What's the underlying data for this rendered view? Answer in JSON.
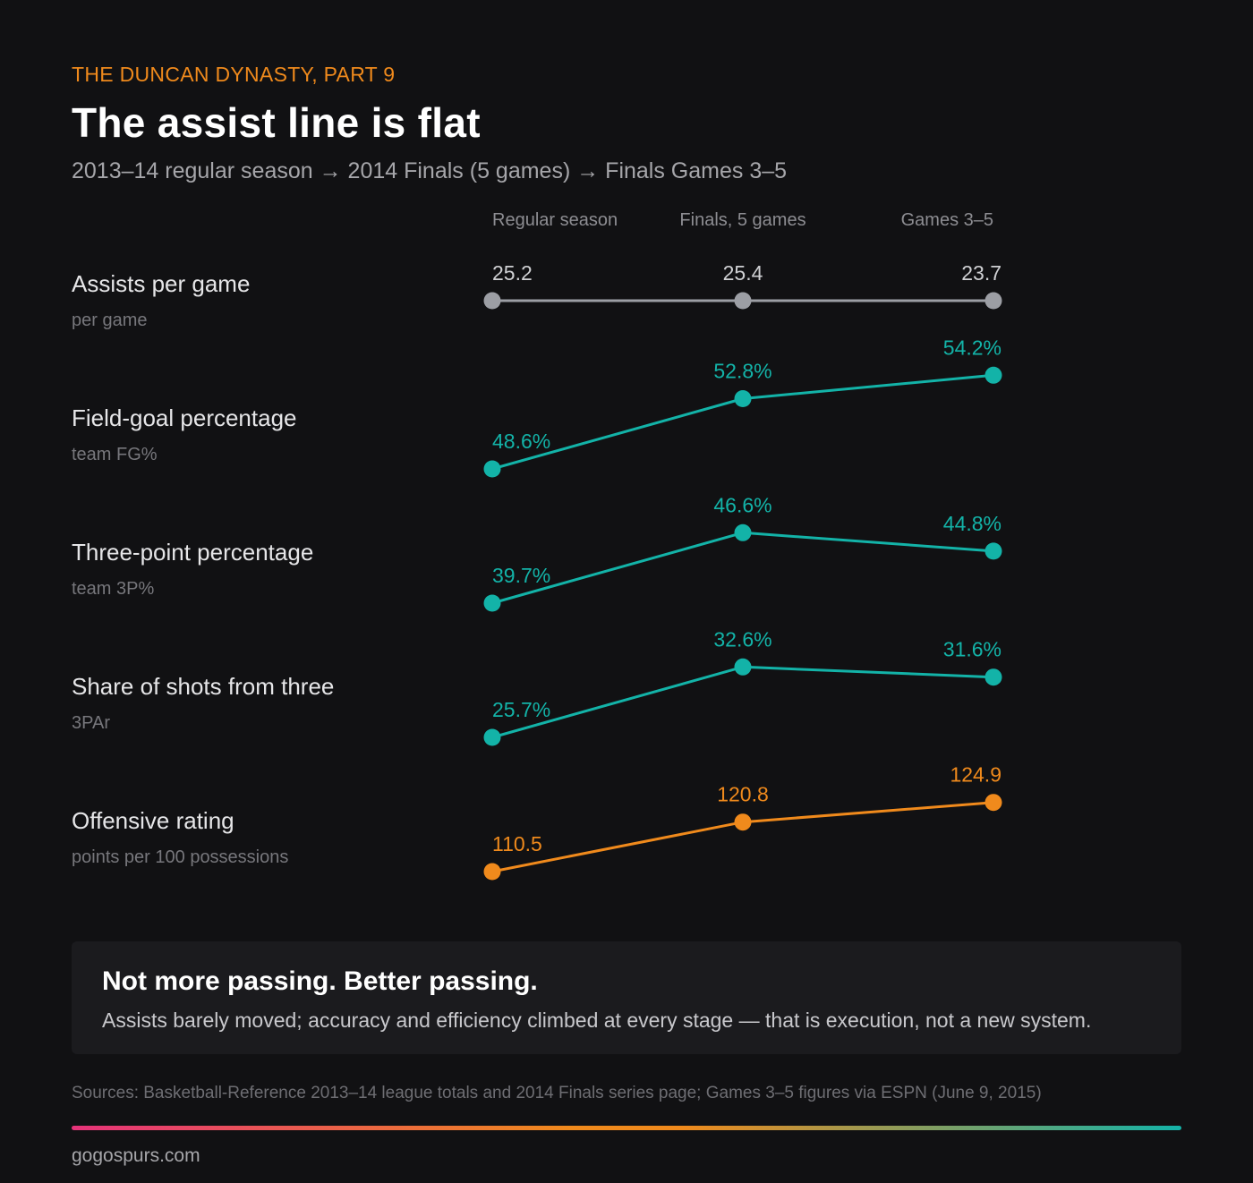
{
  "kicker": "THE DUNCAN DYNASTY, PART 9",
  "title": "The assist line is flat",
  "subtitle": "2013–14 regular season → 2014 Finals (5 games) → Finals Games 3–5",
  "colors": {
    "neutral": "#9c9ea4",
    "teal": "#13b3a8",
    "orange": "#f08a1c"
  },
  "chart_data": {
    "type": "line",
    "title": "The assist line is flat",
    "categories": [
      "Regular season",
      "Finals, 5 games",
      "Games 3–5"
    ],
    "series": [
      {
        "name": "Assists per game",
        "unit": "per game",
        "values": [
          25.2,
          25.4,
          23.7
        ],
        "labels": [
          "25.2",
          "25.4",
          "23.7"
        ],
        "color": "#9c9ea4"
      },
      {
        "name": "Field-goal percentage",
        "unit": "team FG%",
        "values": [
          48.6,
          52.8,
          54.2
        ],
        "labels": [
          "48.6%",
          "52.8%",
          "54.2%"
        ],
        "color": "#13b3a8"
      },
      {
        "name": "Three-point percentage",
        "unit": "team 3P%",
        "values": [
          39.7,
          46.6,
          44.8
        ],
        "labels": [
          "39.7%",
          "46.6%",
          "44.8%"
        ],
        "color": "#13b3a8"
      },
      {
        "name": "Share of shots from three",
        "unit": "3PAr",
        "values": [
          25.7,
          32.6,
          31.6
        ],
        "labels": [
          "25.7%",
          "32.6%",
          "31.6%"
        ],
        "color": "#13b3a8"
      },
      {
        "name": "Offensive rating",
        "unit": "points per 100 possessions",
        "values": [
          110.5,
          120.8,
          124.9
        ],
        "labels": [
          "110.5",
          "120.8",
          "124.9"
        ],
        "color": "#f08a1c"
      }
    ]
  },
  "callout": {
    "head": "Not more passing. Better passing.",
    "body": "Assists barely moved; accuracy and efficiency climbed at every stage — that is execution, not a new system."
  },
  "sources": "Sources: Basketball-Reference 2013–14 league totals and 2014 Finals series page; Games 3–5 figures via ESPN (June 9, 2015)",
  "credit": "gogospurs.com"
}
